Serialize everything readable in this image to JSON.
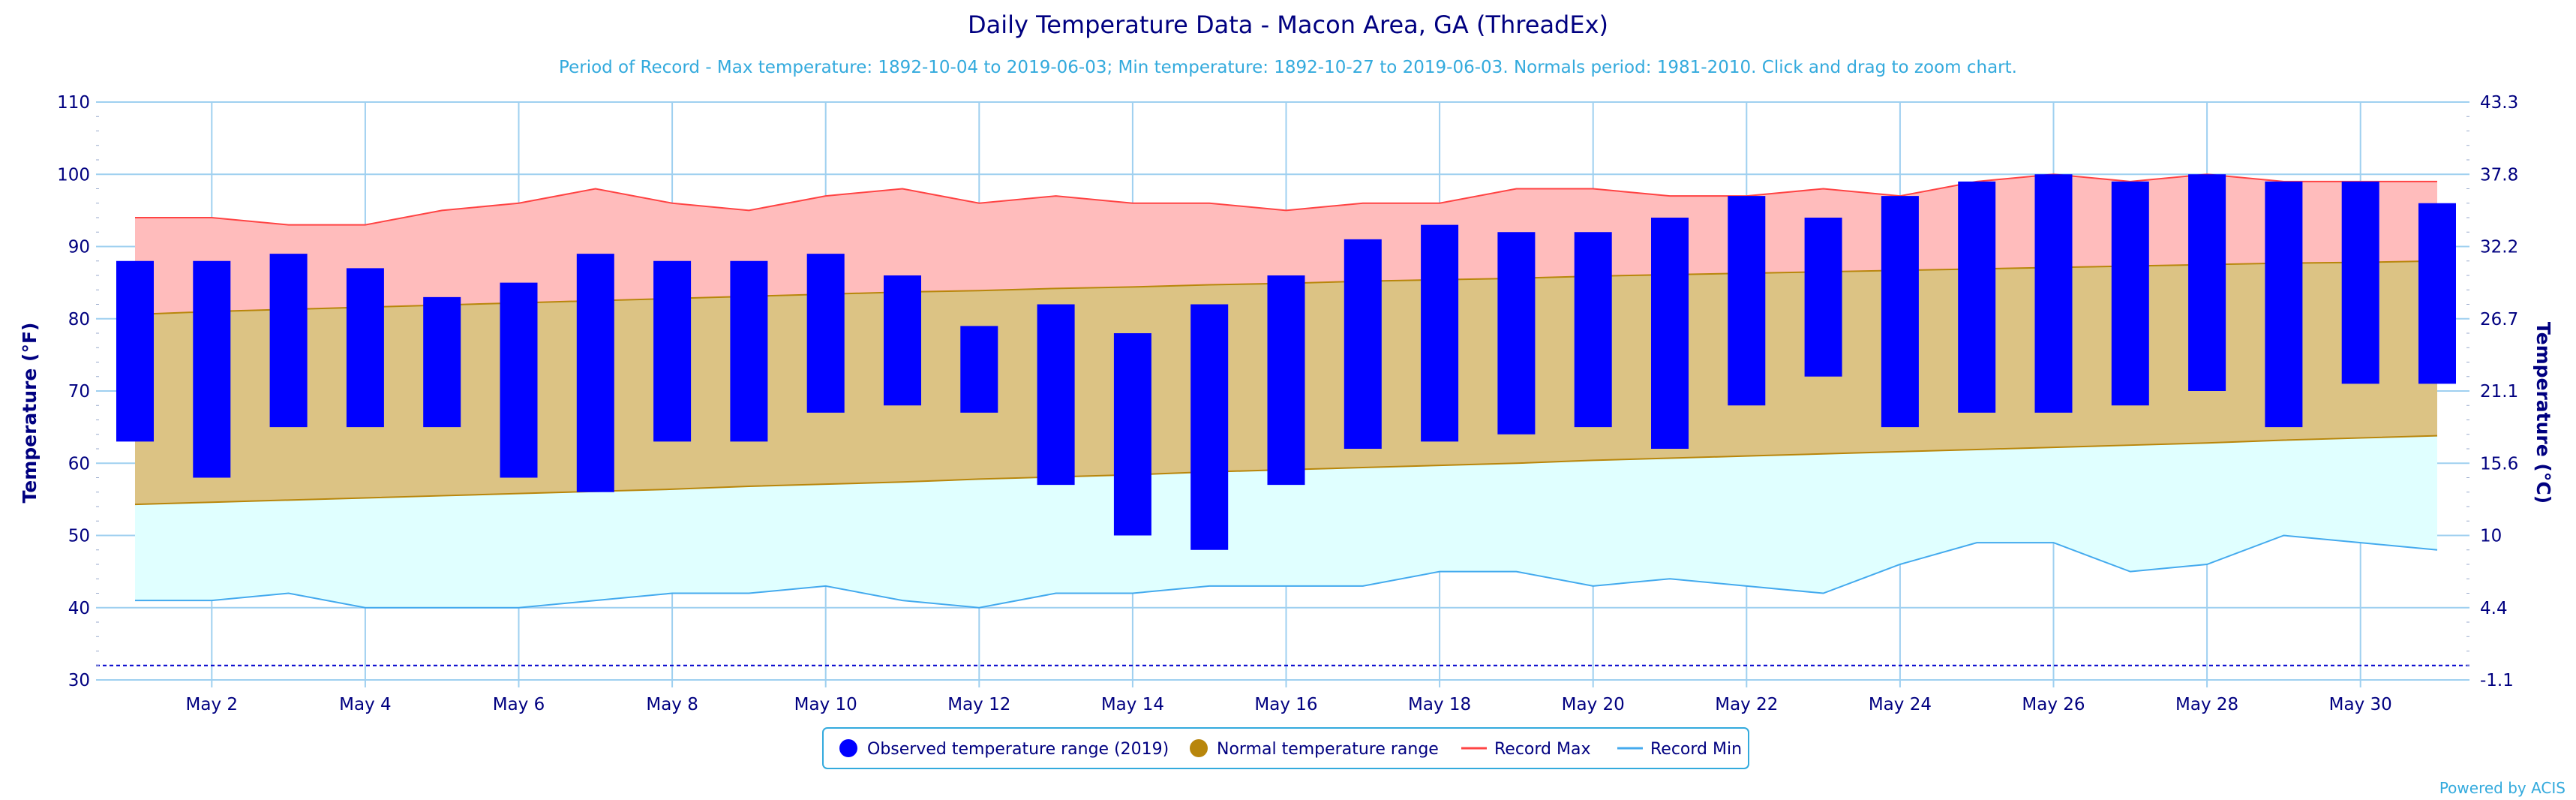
{
  "colors": {
    "observed": "#0000ff",
    "normal_fill": "#dcc384",
    "normal_line": "#b8860b",
    "record_max_fill": "#ffbcbc",
    "record_max_line": "#ff4444",
    "record_min_fill": "#e0ffff",
    "record_min_line": "#44aaee",
    "text": "#000080",
    "subtitle": "#33aadd",
    "grid": "#9fd0f0",
    "freeze_line": "#0000cc"
  },
  "chart_data": {
    "type": "bar",
    "title": "Daily Temperature Data - Macon Area, GA (ThreadEx)",
    "subtitle": "Period of Record - Max temperature: 1892-10-04 to 2019-06-03; Min temperature: 1892-10-27 to 2019-06-03. Normals period: 1981-2010. Click and drag to zoom chart.",
    "ylabel": "Temperature (°F)",
    "ylabel_right": "Temperature (°C)",
    "ylim": [
      30,
      110
    ],
    "yticks": [
      30,
      40,
      50,
      60,
      70,
      80,
      90,
      100,
      110
    ],
    "yticks_right": [
      "-1.1",
      "4.4",
      "10",
      "15.6",
      "21.1",
      "26.7",
      "32.2",
      "37.8",
      "43.3"
    ],
    "x": [
      1,
      2,
      3,
      4,
      5,
      6,
      7,
      8,
      9,
      10,
      11,
      12,
      13,
      14,
      15,
      16,
      17,
      18,
      19,
      20,
      21,
      22,
      23,
      24,
      25,
      26,
      27,
      28,
      29,
      30,
      31
    ],
    "xtick_days": [
      2,
      4,
      6,
      8,
      10,
      12,
      14,
      16,
      18,
      20,
      22,
      24,
      26,
      28,
      30
    ],
    "xtick_labels": [
      "May 2",
      "May 4",
      "May 6",
      "May 8",
      "May 10",
      "May 12",
      "May 14",
      "May 16",
      "May 18",
      "May 20",
      "May 22",
      "May 24",
      "May 26",
      "May 28",
      "May 30"
    ],
    "grid": true,
    "freeze_line": 32,
    "series": [
      {
        "name": "Observed temperature range (2019)",
        "kind": "range-bar",
        "high": [
          88,
          88,
          89,
          87,
          83,
          85,
          89,
          88,
          88,
          89,
          86,
          79,
          82,
          78,
          82,
          86,
          91,
          93,
          92,
          92,
          94,
          97,
          94,
          97,
          99,
          100,
          99,
          100,
          99,
          99,
          96
        ],
        "low": [
          63,
          58,
          65,
          65,
          65,
          58,
          56,
          63,
          63,
          67,
          68,
          67,
          57,
          50,
          48,
          57,
          62,
          63,
          64,
          65,
          62,
          68,
          72,
          65,
          67,
          67,
          68,
          70,
          65,
          71,
          71
        ]
      },
      {
        "name": "Normal temperature range",
        "kind": "range-area",
        "high": [
          80.6,
          81.0,
          81.3,
          81.6,
          81.9,
          82.2,
          82.5,
          82.8,
          83.1,
          83.4,
          83.7,
          83.9,
          84.2,
          84.4,
          84.7,
          84.9,
          85.2,
          85.4,
          85.6,
          85.9,
          86.1,
          86.3,
          86.5,
          86.7,
          86.9,
          87.1,
          87.3,
          87.5,
          87.7,
          87.8,
          88.0
        ],
        "low": [
          54.3,
          54.6,
          54.9,
          55.2,
          55.5,
          55.8,
          56.1,
          56.4,
          56.8,
          57.1,
          57.4,
          57.8,
          58.1,
          58.4,
          58.8,
          59.1,
          59.4,
          59.7,
          60.0,
          60.4,
          60.7,
          61.0,
          61.3,
          61.6,
          61.9,
          62.2,
          62.5,
          62.8,
          63.2,
          63.5,
          63.8
        ]
      },
      {
        "name": "Record Max",
        "kind": "line",
        "values": [
          94,
          94,
          93,
          93,
          95,
          96,
          98,
          96,
          95,
          97,
          98,
          96,
          97,
          96,
          96,
          95,
          96,
          96,
          98,
          98,
          97,
          97,
          98,
          97,
          99,
          100,
          99,
          100,
          99,
          99,
          99
        ]
      },
      {
        "name": "Record Min",
        "kind": "line",
        "values": [
          41,
          41,
          42,
          40,
          40,
          40,
          41,
          42,
          42,
          43,
          41,
          40,
          42,
          42,
          43,
          43,
          43,
          45,
          45,
          43,
          44,
          43,
          42,
          46,
          49,
          49,
          45,
          46,
          50,
          49,
          48
        ]
      }
    ],
    "legend_position": "bottom-center",
    "credit": "Powered by ACIS"
  }
}
